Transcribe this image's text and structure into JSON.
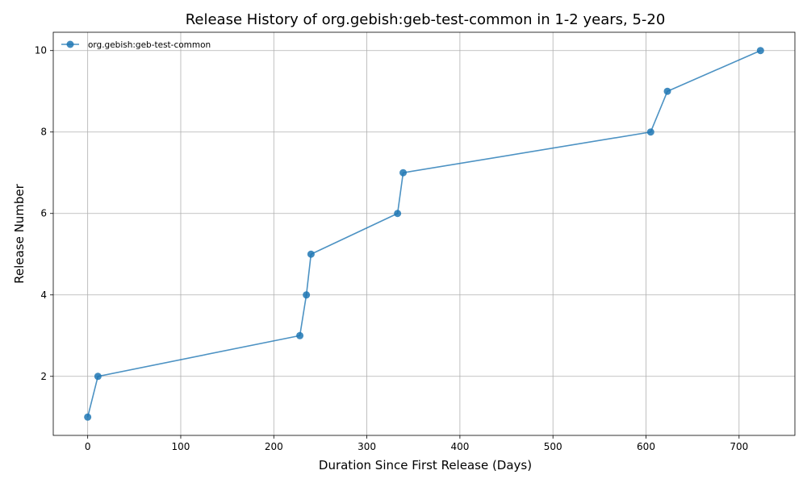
{
  "chart_data": {
    "type": "line",
    "title": "Release History of org.gebish:geb-test-common in 1-2 years, 5-20",
    "xlabel": "Duration Since First Release (Days)",
    "ylabel": "Release Number",
    "xlim": [
      -37,
      760
    ],
    "ylim": [
      0.55,
      10.45
    ],
    "xticks": [
      0,
      100,
      200,
      300,
      400,
      500,
      600,
      700
    ],
    "yticks": [
      2,
      4,
      6,
      8,
      10
    ],
    "grid": true,
    "legend_position": "top-left",
    "series": [
      {
        "name": "org.gebish:geb-test-common",
        "color": "#1f77b4",
        "marker": "circle",
        "x": [
          0,
          11,
          228,
          235,
          240,
          333,
          339,
          605,
          623,
          723
        ],
        "y": [
          1,
          2,
          3,
          4,
          5,
          6,
          7,
          8,
          9,
          10
        ]
      }
    ]
  }
}
